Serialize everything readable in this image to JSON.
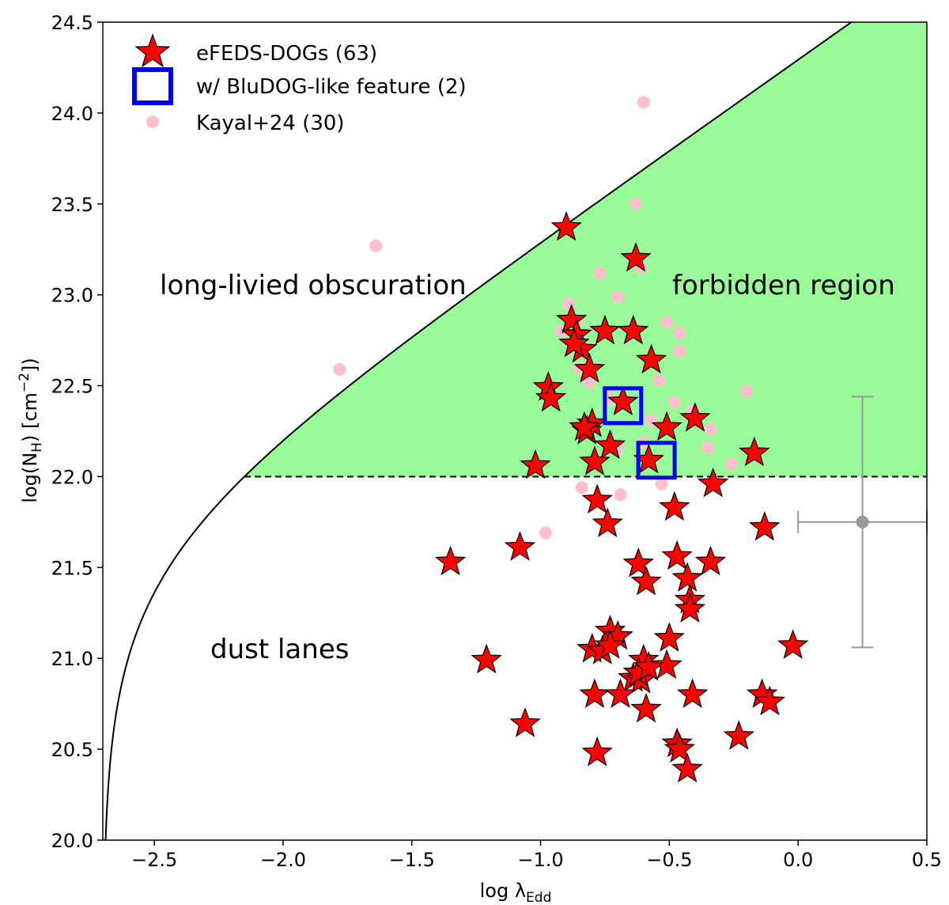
{
  "chart_data": {
    "type": "scatter",
    "xlabel_main": "log λ",
    "xlabel_sub": "Edd",
    "ylabel_main": "log(N",
    "ylabel_sub": "H",
    "ylabel_unit_open": ") [cm",
    "ylabel_unit_exp": "−2",
    "ylabel_unit_close": "])",
    "xlim": [
      -2.7,
      0.5
    ],
    "ylim": [
      20.0,
      24.5
    ],
    "xticks": [
      -2.5,
      -2.0,
      -1.5,
      -1.0,
      -0.5,
      0.0,
      0.5
    ],
    "xtick_labels": [
      "−2.5",
      "−2.0",
      "−1.5",
      "−1.0",
      "−0.5",
      "0.0",
      "0.5"
    ],
    "yticks": [
      20.0,
      20.5,
      21.0,
      21.5,
      22.0,
      22.5,
      23.0,
      23.5,
      24.0,
      24.5
    ],
    "ytick_labels": [
      "20.0",
      "20.5",
      "21.0",
      "21.5",
      "22.0",
      "22.5",
      "23.0",
      "23.5",
      "24.0",
      "24.5"
    ],
    "legend": {
      "position": "top-left",
      "entries": [
        {
          "marker": "star",
          "label": "eFEDS-DOGs (63)"
        },
        {
          "marker": "square",
          "label": "w/ BluDOG-like feature (2)"
        },
        {
          "marker": "circle",
          "label": "Kayal+24 (30)"
        }
      ]
    },
    "region_labels": {
      "long_lived": "long-livied obscuration",
      "forbidden": "forbidden region",
      "dust_lanes": "dust lanes"
    },
    "dashed_line_y": 22.0,
    "effective_edd_curve": {
      "asymptote_x": -2.7,
      "point_x": -2.15,
      "point_y": 22.0,
      "slope": 1
    },
    "colors": {
      "forbidden_fill": "#98fb98",
      "star": "#ff0000",
      "square": "#0000ff",
      "kayal": "#ffc0cb",
      "errorbar": "#999999"
    },
    "series": [
      {
        "name": "eFEDS-DOGs (63)",
        "marker": "star",
        "points": [
          [
            -0.9,
            23.37
          ],
          [
            -0.63,
            23.2
          ],
          [
            -0.88,
            22.86
          ],
          [
            -0.86,
            22.78
          ],
          [
            -0.75,
            22.8
          ],
          [
            -0.64,
            22.8
          ],
          [
            -0.84,
            22.7
          ],
          [
            -0.81,
            22.59
          ],
          [
            -0.57,
            22.64
          ],
          [
            -0.97,
            22.49
          ],
          [
            -0.96,
            22.43
          ],
          [
            -0.68,
            22.41
          ],
          [
            -0.4,
            22.32
          ],
          [
            -0.51,
            22.27
          ],
          [
            -0.8,
            22.29
          ],
          [
            -0.82,
            22.25
          ],
          [
            -0.73,
            22.17
          ],
          [
            -0.17,
            22.13
          ],
          [
            -0.58,
            22.09
          ],
          [
            -0.79,
            22.08
          ],
          [
            -1.02,
            22.06
          ],
          [
            -0.33,
            21.96
          ],
          [
            -0.78,
            21.87
          ],
          [
            -0.48,
            21.83
          ],
          [
            -0.74,
            21.74
          ],
          [
            -0.13,
            21.72
          ],
          [
            -1.08,
            21.61
          ],
          [
            -0.47,
            21.56
          ],
          [
            -1.35,
            21.53
          ],
          [
            -0.62,
            21.52
          ],
          [
            -0.34,
            21.53
          ],
          [
            -0.43,
            21.44
          ],
          [
            -0.59,
            21.42
          ],
          [
            -0.42,
            21.32
          ],
          [
            -0.42,
            21.27
          ],
          [
            -0.73,
            21.15
          ],
          [
            -0.7,
            21.12
          ],
          [
            -0.5,
            21.11
          ],
          [
            -0.8,
            21.05
          ],
          [
            -0.76,
            21.04
          ],
          [
            -0.02,
            21.07
          ],
          [
            -1.21,
            20.99
          ],
          [
            -0.6,
            20.99
          ],
          [
            -0.51,
            20.96
          ],
          [
            -0.64,
            20.89
          ],
          [
            -0.61,
            20.88
          ],
          [
            -0.79,
            20.8
          ],
          [
            -0.69,
            20.8
          ],
          [
            -0.41,
            20.8
          ],
          [
            -0.14,
            20.8
          ],
          [
            -0.11,
            20.76
          ],
          [
            -0.59,
            20.72
          ],
          [
            -1.06,
            20.64
          ],
          [
            -0.23,
            20.57
          ],
          [
            -0.47,
            20.53
          ],
          [
            -0.46,
            20.5
          ],
          [
            -0.78,
            20.48
          ],
          [
            -0.43,
            20.39
          ],
          [
            -0.62,
            20.92
          ],
          [
            -0.58,
            20.95
          ],
          [
            -0.73,
            21.07
          ],
          [
            -0.87,
            22.73
          ],
          [
            -0.83,
            22.27
          ]
        ]
      },
      {
        "name": "w/ BluDOG-like feature (2)",
        "marker": "square",
        "points": [
          [
            -0.68,
            22.39
          ],
          [
            -0.55,
            22.09
          ]
        ]
      },
      {
        "name": "Kayal+24 (30)",
        "marker": "circle",
        "points": [
          [
            -0.6,
            24.06
          ],
          [
            -0.63,
            23.5
          ],
          [
            -1.64,
            23.27
          ],
          [
            -0.77,
            23.12
          ],
          [
            -0.61,
            23.15
          ],
          [
            -0.7,
            22.99
          ],
          [
            -0.89,
            22.95
          ],
          [
            -0.86,
            22.86
          ],
          [
            -0.51,
            22.85
          ],
          [
            -0.46,
            22.79
          ],
          [
            -0.46,
            22.69
          ],
          [
            -1.78,
            22.59
          ],
          [
            -0.85,
            22.6
          ],
          [
            -0.2,
            22.47
          ],
          [
            -0.54,
            22.53
          ],
          [
            -0.41,
            22.36
          ],
          [
            -0.34,
            22.26
          ],
          [
            -0.35,
            22.16
          ],
          [
            -0.26,
            22.07
          ],
          [
            -0.7,
            22.16
          ],
          [
            -0.84,
            21.94
          ],
          [
            -0.53,
            21.96
          ],
          [
            -0.69,
            21.9
          ],
          [
            -0.98,
            21.69
          ],
          [
            -0.6,
            22.19
          ],
          [
            -0.73,
            22.43
          ],
          [
            -0.81,
            22.52
          ],
          [
            -0.57,
            22.31
          ],
          [
            -0.92,
            22.8
          ],
          [
            -0.48,
            22.41
          ]
        ]
      }
    ],
    "errorbar": {
      "x": 0.25,
      "y": 21.75,
      "xerr": 0.25,
      "yerr": 0.69
    }
  }
}
